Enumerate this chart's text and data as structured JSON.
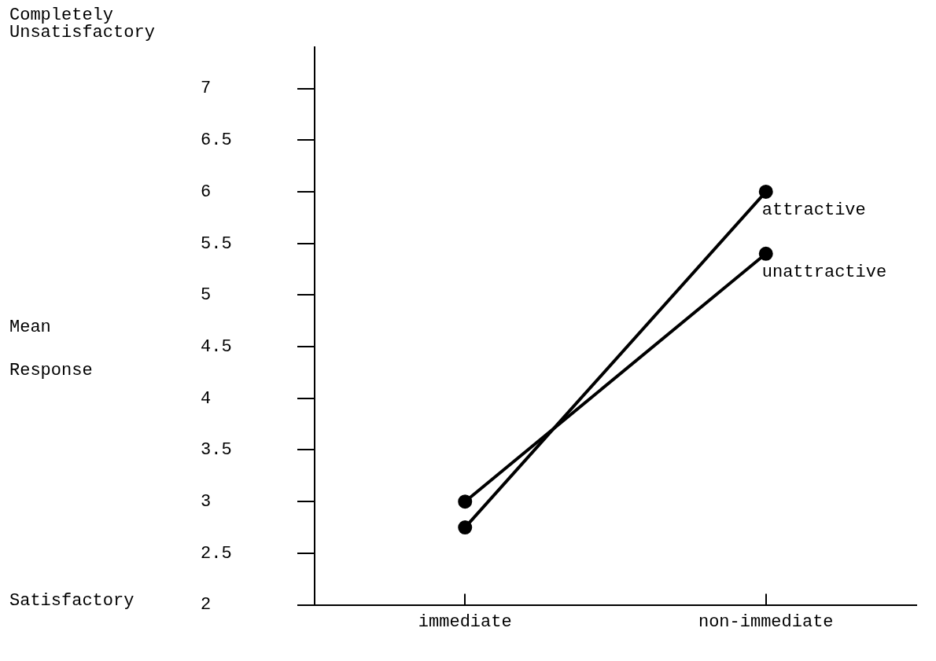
{
  "chart_data": {
    "type": "line",
    "ylabel": "Mean Response",
    "categories": [
      "immediate",
      "non-immediate"
    ],
    "series": [
      {
        "name": "attractive",
        "color": "#000000",
        "values": [
          2.75,
          6.0
        ]
      },
      {
        "name": "unattractive",
        "color": "#000000",
        "values": [
          3.0,
          5.4
        ]
      }
    ],
    "ylim": [
      2,
      7.4
    ],
    "yticks": [
      2,
      2.5,
      3,
      3.5,
      4,
      4.5,
      5,
      5.5,
      6,
      6.5,
      7
    ],
    "grid": false,
    "legend": false,
    "marker": "circle",
    "line_style": "solid",
    "annotations": [
      "Completely Unsatisfactory",
      "Satisfactory"
    ]
  }
}
